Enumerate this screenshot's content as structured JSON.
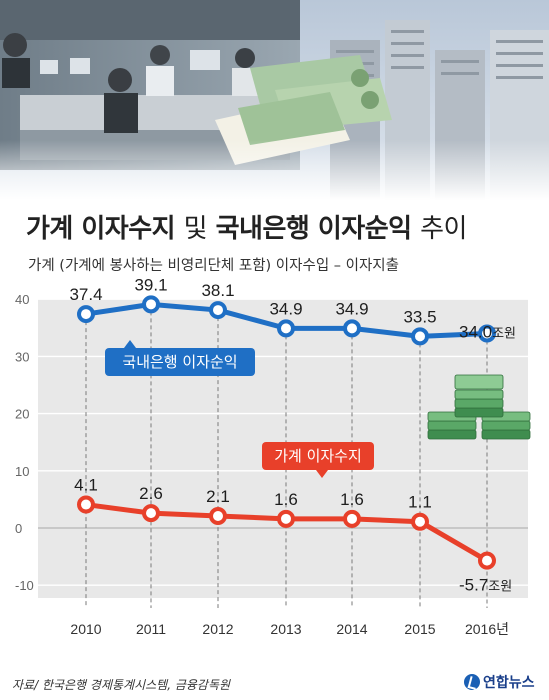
{
  "header": {
    "title_part1": "가계 이자수지",
    "title_part2": "및",
    "title_part3": "국내은행 이자순익",
    "title_part4": "추이",
    "subtitle": "가계 (가계에 봉사하는 비영리단체 포함) 이자수입 – 이자지출"
  },
  "footer": {
    "source": "자료/ 한국은행 경제통계시스템, 금융감독원",
    "logo": "연합뉴스"
  },
  "colors": {
    "bank_series": "#1f6fc5",
    "household_series": "#e8402a",
    "plot_band": "#e8e8e8"
  },
  "chart_data": {
    "type": "line",
    "x": [
      "2010",
      "2011",
      "2012",
      "2013",
      "2014",
      "2015",
      "2016년"
    ],
    "ylim": [
      -10,
      40
    ],
    "yticks": [
      "40",
      "30",
      "20",
      "10",
      "0",
      "-10"
    ],
    "ytick_values": [
      40,
      30,
      20,
      10,
      0,
      -10
    ],
    "series": [
      {
        "name": "국내은행 이자순익",
        "values": [
          37.4,
          39.1,
          38.1,
          34.9,
          34.9,
          33.5,
          34.0
        ],
        "labels": [
          "37.4",
          "39.1",
          "38.1",
          "34.9",
          "34.9",
          "33.5",
          "34.0"
        ],
        "unit": "조원"
      },
      {
        "name": "가계 이자수지",
        "values": [
          4.1,
          2.6,
          2.1,
          1.6,
          1.6,
          1.1,
          -5.7
        ],
        "labels": [
          "4.1",
          "2.6",
          "2.1",
          "1.6",
          "1.6",
          "1.1",
          "-5.7"
        ],
        "unit": "조원"
      }
    ]
  }
}
